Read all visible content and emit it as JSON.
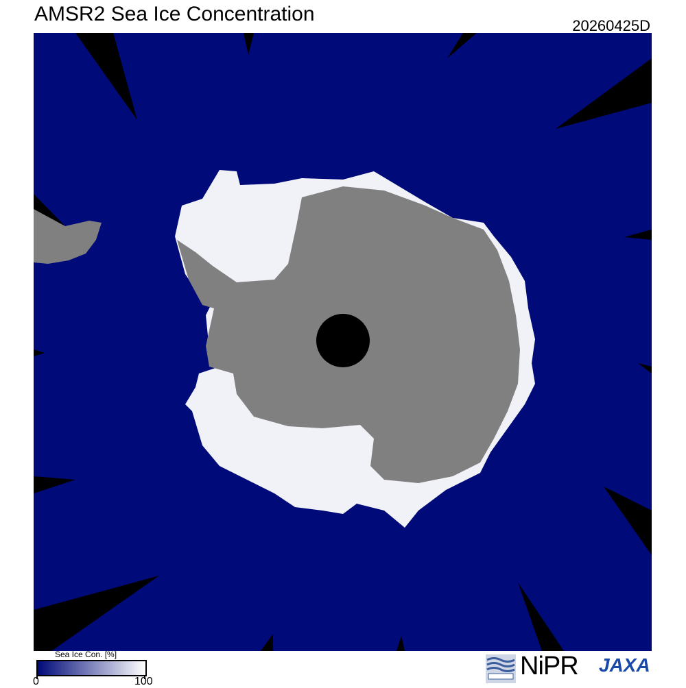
{
  "header": {
    "title": "AMSR2 Sea Ice Concentration",
    "date_code": "20260425D"
  },
  "legend": {
    "label": "Sea Ice Con. [%]",
    "min_label": "0",
    "max_label": "100",
    "color_min": "#000a78",
    "color_max": "#ffffff"
  },
  "map": {
    "ocean_color": "#000a78",
    "land_color": "#808080",
    "no_data_color": "#000000",
    "ice_color": "#f4f4fa",
    "region": "Antarctica (south polar)"
  },
  "logos": {
    "nipr": "NiPR",
    "jaxa": "JAXA"
  }
}
